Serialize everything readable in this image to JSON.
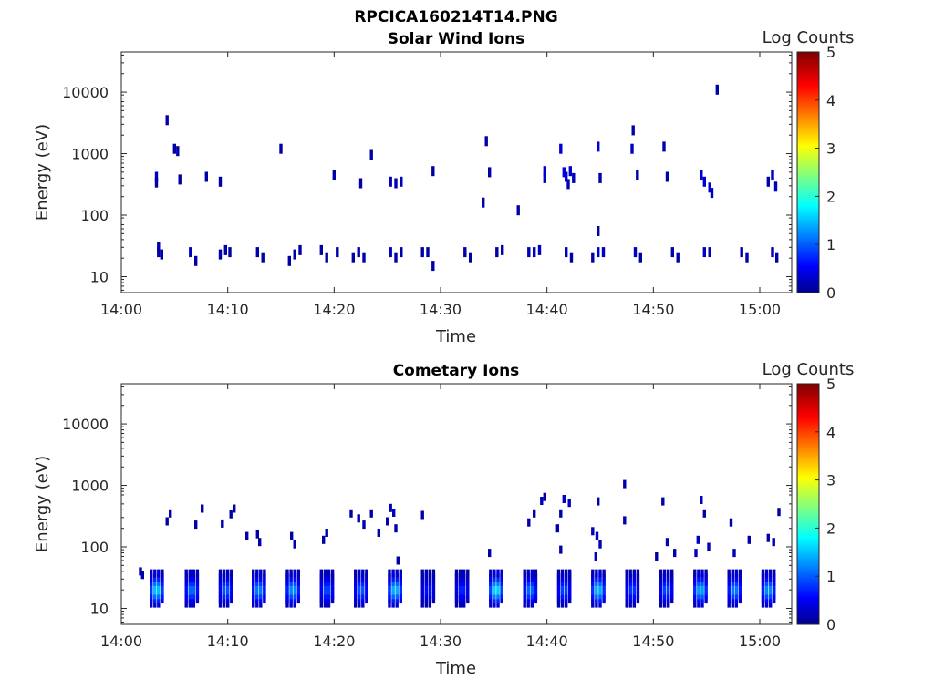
{
  "figure_title": "RPCICA160214T14.PNG",
  "chart_data": [
    {
      "type": "heatmap",
      "title": "Solar Wind Ions",
      "xlabel": "Time",
      "ylabel": "Energy (eV)",
      "y_scale": "log",
      "ylim": [
        5.5,
        45000
      ],
      "xlim": [
        "14:00",
        "15:03"
      ],
      "x_ticks": [
        "14:00",
        "14:10",
        "14:20",
        "14:30",
        "14:40",
        "14:50",
        "15:00"
      ],
      "y_ticks": [
        "10",
        "100",
        "1000",
        "10000"
      ],
      "colorbar": {
        "label": "Log Counts",
        "range": [
          0,
          5
        ],
        "ticks": [
          "0",
          "1",
          "2",
          "3",
          "4",
          "5"
        ],
        "colormap": "jet"
      },
      "cells": [
        [
          3.5,
          30,
          0.2
        ],
        [
          3.5,
          25,
          0.2
        ],
        [
          3.8,
          23,
          0.2
        ],
        [
          6.5,
          25,
          0.3
        ],
        [
          7.0,
          18,
          0.2
        ],
        [
          9.3,
          23,
          0.2
        ],
        [
          9.8,
          27,
          0.2
        ],
        [
          10.2,
          25,
          0.2
        ],
        [
          12.8,
          25,
          0.2
        ],
        [
          13.3,
          20,
          0.2
        ],
        [
          15.8,
          18,
          0.2
        ],
        [
          16.3,
          23,
          0.2
        ],
        [
          16.8,
          27,
          0.2
        ],
        [
          18.8,
          27,
          0.2
        ],
        [
          19.3,
          20,
          0.2
        ],
        [
          20.3,
          25,
          0.2
        ],
        [
          21.8,
          20,
          0.2
        ],
        [
          22.3,
          25,
          0.2
        ],
        [
          22.8,
          20,
          0.2
        ],
        [
          25.3,
          25,
          0.3
        ],
        [
          25.8,
          20,
          0.2
        ],
        [
          26.3,
          25,
          0.2
        ],
        [
          28.3,
          25,
          0.2
        ],
        [
          28.8,
          25,
          0.2
        ],
        [
          29.3,
          15,
          0.2
        ],
        [
          32.3,
          25,
          0.2
        ],
        [
          32.8,
          20,
          0.2
        ],
        [
          35.3,
          25,
          0.2
        ],
        [
          35.8,
          27,
          0.2
        ],
        [
          38.3,
          25,
          0.3
        ],
        [
          38.8,
          25,
          0.3
        ],
        [
          39.3,
          27,
          0.3
        ],
        [
          41.8,
          25,
          0.3
        ],
        [
          42.3,
          20,
          0.2
        ],
        [
          44.3,
          20,
          0.2
        ],
        [
          44.8,
          25,
          0.4
        ],
        [
          45.3,
          25,
          0.3
        ],
        [
          48.3,
          25,
          0.3
        ],
        [
          48.8,
          20,
          0.2
        ],
        [
          51.8,
          25,
          0.2
        ],
        [
          52.3,
          20,
          0.2
        ],
        [
          54.8,
          25,
          0.3
        ],
        [
          55.3,
          25,
          0.3
        ],
        [
          58.3,
          25,
          0.2
        ],
        [
          58.8,
          20,
          0.2
        ],
        [
          61.2,
          25,
          0.3
        ],
        [
          61.6,
          20,
          0.2
        ],
        [
          3.3,
          420,
          0.3
        ],
        [
          3.3,
          340,
          0.2
        ],
        [
          5.5,
          380,
          0.2
        ],
        [
          8.0,
          420,
          0.2
        ],
        [
          9.3,
          350,
          0.2
        ],
        [
          15.0,
          1200,
          0.2
        ],
        [
          20.0,
          450,
          0.2
        ],
        [
          22.5,
          330,
          0.2
        ],
        [
          25.3,
          350,
          0.3
        ],
        [
          25.8,
          330,
          0.3
        ],
        [
          26.3,
          350,
          0.3
        ],
        [
          29.3,
          520,
          0.2
        ],
        [
          34.3,
          1600,
          0.2
        ],
        [
          34.6,
          500,
          0.2
        ],
        [
          39.8,
          520,
          0.4
        ],
        [
          39.8,
          400,
          0.3
        ],
        [
          41.3,
          1200,
          0.4
        ],
        [
          41.6,
          500,
          0.5
        ],
        [
          41.8,
          420,
          0.4
        ],
        [
          42.2,
          520,
          0.4
        ],
        [
          42.5,
          400,
          0.3
        ],
        [
          42.0,
          320,
          0.3
        ],
        [
          44.8,
          1300,
          0.4
        ],
        [
          45.0,
          400,
          0.2
        ],
        [
          48.0,
          1200,
          0.3
        ],
        [
          48.1,
          2400,
          0.2
        ],
        [
          48.5,
          450,
          0.2
        ],
        [
          51.0,
          1300,
          0.2
        ],
        [
          51.3,
          420,
          0.2
        ],
        [
          54.5,
          450,
          0.4
        ],
        [
          54.8,
          350,
          0.4
        ],
        [
          55.3,
          280,
          0.4
        ],
        [
          55.5,
          230,
          0.3
        ],
        [
          56.0,
          11000,
          0.2
        ],
        [
          60.8,
          350,
          0.2
        ],
        [
          61.2,
          450,
          0.3
        ],
        [
          61.5,
          290,
          0.3
        ],
        [
          4.3,
          3500,
          0.2
        ],
        [
          5.0,
          1200,
          0.2
        ],
        [
          5.3,
          1100,
          0.2
        ],
        [
          34.0,
          160,
          0.2
        ],
        [
          37.3,
          120,
          0.2
        ],
        [
          23.5,
          950,
          0.2
        ],
        [
          44.8,
          55,
          0.2
        ]
      ]
    },
    {
      "type": "heatmap",
      "title": "Cometary Ions",
      "xlabel": "Time",
      "ylabel": "Energy (eV)",
      "y_scale": "log",
      "ylim": [
        5.5,
        45000
      ],
      "xlim": [
        "14:00",
        "15:03"
      ],
      "x_ticks": [
        "14:00",
        "14:10",
        "14:20",
        "14:30",
        "14:40",
        "14:50",
        "15:00"
      ],
      "y_ticks": [
        "10",
        "100",
        "1000",
        "10000"
      ],
      "colorbar": {
        "label": "Log Counts",
        "range": [
          0,
          5
        ],
        "ticks": [
          "0",
          "1",
          "2",
          "3",
          "4",
          "5"
        ],
        "colormap": "jet"
      },
      "bursts_minutes": [
        3.3,
        6.6,
        9.8,
        12.9,
        16.1,
        19.3,
        22.5,
        25.7,
        28.8,
        32.0,
        35.2,
        38.4,
        41.6,
        44.8,
        48.0,
        51.2,
        54.4,
        57.6,
        60.8
      ],
      "burst_levels": [
        1.6,
        1.1,
        1.0,
        1.2,
        1.3,
        0.9,
        1.0,
        1.5,
        0.6,
        0.7,
        1.7,
        1.1,
        0.9,
        1.5,
        0.8,
        0.9,
        1.4,
        1.2,
        1.3
      ],
      "scatter_cells": [
        [
          1.8,
          40,
          0.2
        ],
        [
          2.0,
          35,
          0.2
        ],
        [
          4.3,
          260,
          0.2
        ],
        [
          4.6,
          350,
          0.2
        ],
        [
          7.0,
          230,
          0.2
        ],
        [
          7.6,
          420,
          0.2
        ],
        [
          9.5,
          240,
          0.2
        ],
        [
          10.3,
          340,
          0.2
        ],
        [
          10.6,
          420,
          0.2
        ],
        [
          11.8,
          150,
          0.2
        ],
        [
          12.8,
          160,
          0.2
        ],
        [
          13.0,
          120,
          0.2
        ],
        [
          16.0,
          150,
          0.2
        ],
        [
          16.3,
          110,
          0.2
        ],
        [
          19.3,
          170,
          0.2
        ],
        [
          19.0,
          130,
          0.2
        ],
        [
          21.6,
          350,
          0.2
        ],
        [
          22.3,
          290,
          0.2
        ],
        [
          22.8,
          230,
          0.2
        ],
        [
          23.5,
          350,
          0.2
        ],
        [
          24.2,
          170,
          0.2
        ],
        [
          25.3,
          430,
          0.3
        ],
        [
          25.6,
          360,
          0.3
        ],
        [
          25.0,
          260,
          0.2
        ],
        [
          25.8,
          200,
          0.2
        ],
        [
          28.3,
          330,
          0.2
        ],
        [
          26.0,
          60,
          0.2
        ],
        [
          34.6,
          80,
          0.2
        ],
        [
          38.3,
          250,
          0.2
        ],
        [
          38.8,
          350,
          0.2
        ],
        [
          39.5,
          560,
          0.3
        ],
        [
          39.8,
          650,
          0.2
        ],
        [
          41.3,
          350,
          0.2
        ],
        [
          41.6,
          600,
          0.3
        ],
        [
          42.1,
          520,
          0.3
        ],
        [
          41.0,
          200,
          0.2
        ],
        [
          41.3,
          90,
          0.2
        ],
        [
          44.3,
          180,
          0.3
        ],
        [
          44.7,
          150,
          0.3
        ],
        [
          45.0,
          110,
          0.3
        ],
        [
          44.8,
          550,
          0.2
        ],
        [
          44.6,
          70,
          0.3
        ],
        [
          47.3,
          1050,
          0.2
        ],
        [
          47.3,
          270,
          0.2
        ],
        [
          50.3,
          70,
          0.2
        ],
        [
          50.9,
          550,
          0.2
        ],
        [
          51.3,
          120,
          0.3
        ],
        [
          52.0,
          80,
          0.2
        ],
        [
          54.0,
          80,
          0.3
        ],
        [
          54.2,
          130,
          0.3
        ],
        [
          54.5,
          580,
          0.3
        ],
        [
          54.8,
          350,
          0.2
        ],
        [
          55.2,
          100,
          0.3
        ],
        [
          57.3,
          250,
          0.2
        ],
        [
          57.6,
          80,
          0.3
        ],
        [
          59.0,
          130,
          0.2
        ],
        [
          60.8,
          140,
          0.2
        ],
        [
          61.3,
          120,
          0.2
        ],
        [
          61.8,
          370,
          0.2
        ]
      ]
    }
  ]
}
